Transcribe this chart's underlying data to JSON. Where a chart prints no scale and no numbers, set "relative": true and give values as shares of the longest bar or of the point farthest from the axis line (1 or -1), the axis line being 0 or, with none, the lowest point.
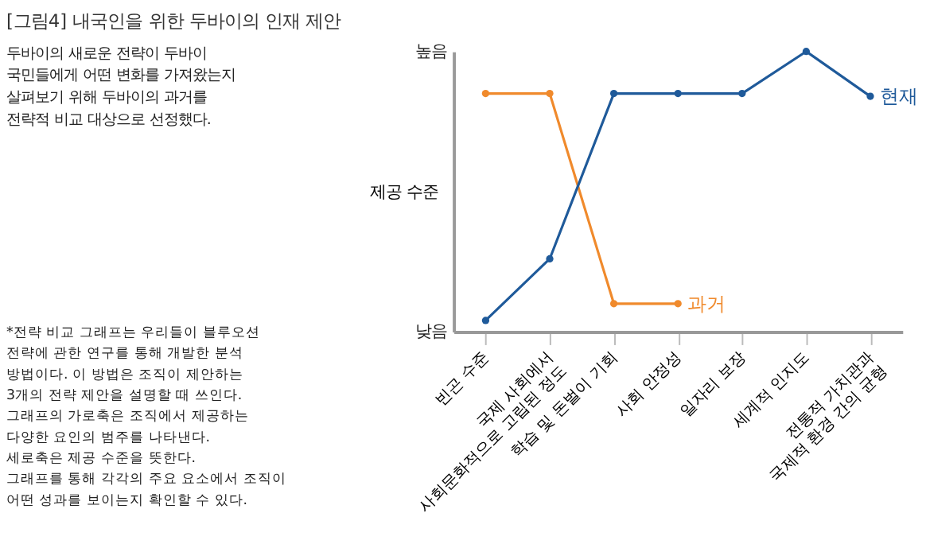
{
  "chart_data": {
    "type": "line",
    "title": "[그림4] 내국인을 위한 두바이의 인재 제안",
    "subtitle": "두바이의 새로운 전략이 두바이\n국민들에게 어떤 변화를 가져왔는지\n살펴보기 위해 두바이의 과거를\n전략적 비교 대상으로 선정했다.",
    "ylabel": "제공 수준",
    "annotations": [
      "높음",
      "낮음",
      "*전략 비교 그래프는 우리들이 블루오션\n전략에 관한 연구를 통해 개발한 분석\n방법이다. 이 방법은 조직이 제안하는\n3개의 전략 제안을 설명할 때 쓰인다.\n그래프의 가로축은 조직에서 제공하는\n다양한 요인의 범주를 나타낸다.\n세로축은 제공 수준을 뜻한다.\n그래프를 통해 각각의 주요 요소에서 조직이\n어떤 성과를 보이는지 확인할 수 있다."
    ],
    "categories": [
      "빈곤 수준",
      "국제 사회에서\n사회문화적으로 고립된 정도",
      "학습 및 돈벌이 기회",
      "사회 안정성",
      "일자리 보장",
      "세계적 인지도",
      "전통적 가치관과\n국제적 환경 간의 균형"
    ],
    "relative": true,
    "legend": false,
    "grid": false,
    "marker": "circle",
    "line_style": "solid",
    "series": [
      {
        "name": "과거",
        "color": "#f08a2c",
        "values": [
          0.85,
          0.85,
          0.1,
          0.1,
          null,
          null,
          null
        ]
      },
      {
        "name": "현재",
        "color": "#1f5a9a",
        "values": [
          0.04,
          0.26,
          0.85,
          0.85,
          0.85,
          1.0,
          0.84
        ]
      }
    ]
  }
}
